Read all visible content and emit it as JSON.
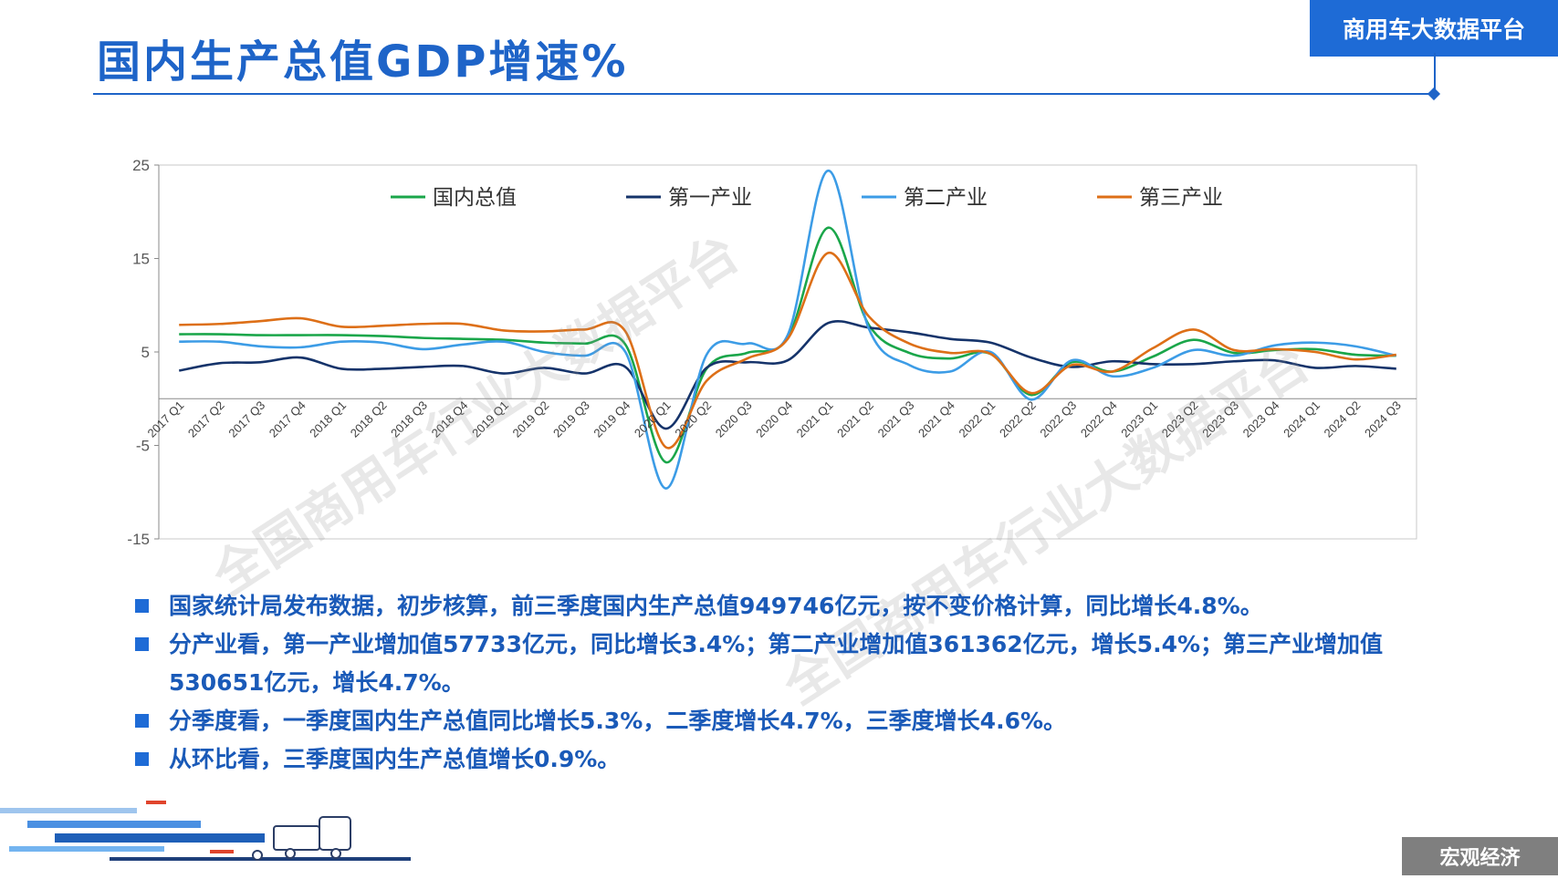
{
  "header": {
    "title": "国内生产总值GDP增速%",
    "brand": "商用车大数据平台"
  },
  "footer": {
    "section_label": "宏观经济"
  },
  "watermarks": [
    "全国商用车行业大数据平台",
    "全国商用车行业大数据平台"
  ],
  "bullets": [
    "国家统计局发布数据，初步核算，前三季度国内生产总值949746亿元，按不变价格计算，同比增长4.8%。",
    "分产业看，第一产业增加值57733亿元，同比增长3.4%；第二产业增加值361362亿元，增长5.4%；第三产业增加值530651亿元，增长4.7%。",
    "分季度看，一季度国内生产总值同比增长5.3%，二季度增长4.7%，三季度增长4.6%。",
    "从环比看，三季度国内生产总值增长0.9%。"
  ],
  "chart_data": {
    "type": "line",
    "title": "",
    "xlabel": "",
    "ylabel": "",
    "ylim": [
      -15,
      25
    ],
    "yticks": [
      25,
      15,
      5,
      -5,
      -15
    ],
    "grid": false,
    "legend_position": "top",
    "categories": [
      "2017 Q1",
      "2017 Q2",
      "2017 Q3",
      "2017 Q4",
      "2018 Q1",
      "2018 Q2",
      "2018 Q3",
      "2018 Q4",
      "2019 Q1",
      "2019 Q2",
      "2019 Q3",
      "2019 Q4",
      "2020 Q1",
      "2020 Q2",
      "2020 Q3",
      "2020 Q4",
      "2021 Q1",
      "2021 Q2",
      "2021 Q3",
      "2021 Q4",
      "2022 Q1",
      "2022 Q2",
      "2022 Q3",
      "2022 Q4",
      "2023 Q1",
      "2023 Q2",
      "2023 Q3",
      "2023 Q4",
      "2024 Q1",
      "2024 Q2",
      "2024 Q3"
    ],
    "series": [
      {
        "name": "国内总值",
        "color": "#1aa64a",
        "values": [
          6.9,
          6.9,
          6.8,
          6.8,
          6.8,
          6.7,
          6.5,
          6.4,
          6.3,
          6.0,
          5.9,
          5.8,
          -6.8,
          3.2,
          4.9,
          6.5,
          18.3,
          7.9,
          4.9,
          4.3,
          4.8,
          0.4,
          3.9,
          2.9,
          4.5,
          6.3,
          4.9,
          5.2,
          5.3,
          4.7,
          4.6
        ]
      },
      {
        "name": "第一产业",
        "color": "#15336a",
        "values": [
          3.0,
          3.8,
          3.9,
          4.4,
          3.2,
          3.2,
          3.4,
          3.5,
          2.7,
          3.3,
          2.7,
          3.4,
          -3.2,
          3.3,
          3.9,
          4.1,
          8.1,
          7.6,
          7.1,
          6.4,
          6.0,
          4.4,
          3.4,
          4.0,
          3.7,
          3.7,
          4.0,
          4.1,
          3.3,
          3.5,
          3.2
        ]
      },
      {
        "name": "第二产业",
        "color": "#3c9ce6",
        "values": [
          6.1,
          6.1,
          5.6,
          5.5,
          6.1,
          6.0,
          5.3,
          5.8,
          6.1,
          5.0,
          4.6,
          5.0,
          -9.6,
          4.7,
          5.9,
          6.8,
          24.4,
          7.5,
          3.6,
          2.9,
          5.0,
          -0.1,
          4.1,
          2.4,
          3.3,
          5.2,
          4.6,
          5.7,
          6.0,
          5.6,
          4.6
        ]
      },
      {
        "name": "第三产业",
        "color": "#dd6f17",
        "values": [
          7.9,
          8.0,
          8.3,
          8.6,
          7.7,
          7.8,
          8.0,
          8.0,
          7.3,
          7.2,
          7.4,
          7.2,
          -5.2,
          1.9,
          4.3,
          6.4,
          15.6,
          8.8,
          5.9,
          4.9,
          4.8,
          0.6,
          3.6,
          2.9,
          5.4,
          7.4,
          5.2,
          5.3,
          5.0,
          4.2,
          4.7
        ]
      }
    ]
  }
}
